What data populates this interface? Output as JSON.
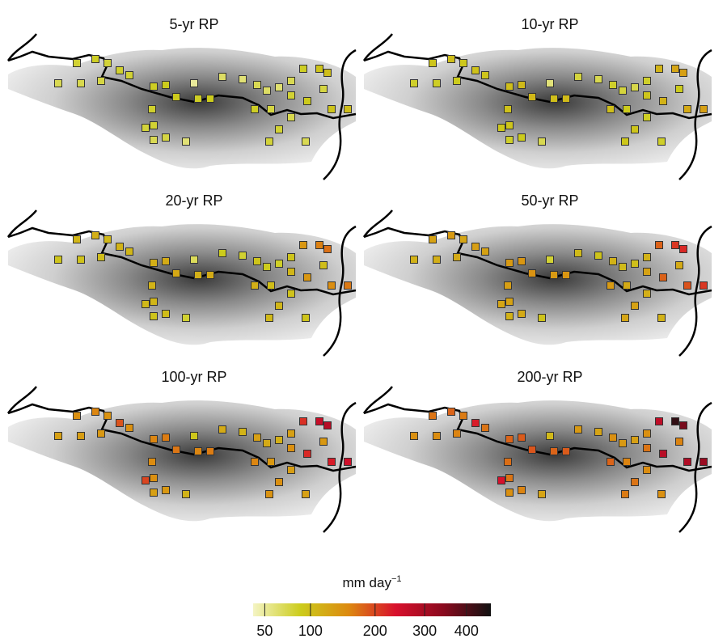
{
  "chart_data": {
    "type": "map",
    "panels": [
      {
        "title": "5-yr RP",
        "values": [
          70,
          72,
          80,
          85,
          78,
          75,
          82,
          80,
          85,
          88,
          90,
          85,
          88,
          82,
          80,
          78,
          75,
          70,
          60,
          65,
          60,
          70,
          65,
          62,
          70,
          85,
          95,
          100,
          75,
          90,
          80,
          75,
          72,
          80,
          70,
          78,
          95,
          100,
          50,
          85
        ]
      },
      {
        "title": "10-yr RP",
        "values": [
          83,
          85,
          94,
          100,
          92,
          89,
          97,
          94,
          100,
          104,
          106,
          100,
          104,
          97,
          94,
          92,
          89,
          83,
          71,
          77,
          71,
          83,
          77,
          73,
          83,
          110,
          125,
          130,
          89,
          112,
          94,
          89,
          85,
          94,
          83,
          92,
          120,
          130,
          59,
          100
        ]
      },
      {
        "title": "20-yr RP",
        "values": [
          95,
          97,
          108,
          115,
          105,
          101,
          111,
          108,
          115,
          119,
          122,
          115,
          119,
          111,
          108,
          105,
          101,
          95,
          81,
          88,
          81,
          95,
          88,
          84,
          95,
          140,
          160,
          170,
          101,
          140,
          108,
          101,
          97,
          108,
          95,
          105,
          150,
          165,
          68,
          115
        ]
      },
      {
        "title": "50-yr RP",
        "values": [
          112,
          115,
          128,
          136,
          125,
          120,
          131,
          128,
          136,
          141,
          144,
          136,
          141,
          131,
          128,
          125,
          120,
          112,
          96,
          104,
          96,
          112,
          104,
          99,
          112,
          180,
          210,
          220,
          120,
          180,
          128,
          120,
          115,
          128,
          112,
          125,
          190,
          210,
          80,
          136
        ]
      },
      {
        "title": "100-yr RP",
        "values": [
          130,
          133,
          148,
          157,
          144,
          139,
          190,
          148,
          157,
          163,
          167,
          157,
          163,
          152,
          148,
          200,
          139,
          130,
          111,
          120,
          111,
          130,
          120,
          115,
          130,
          215,
          260,
          280,
          139,
          220,
          148,
          139,
          133,
          148,
          130,
          144,
          230,
          250,
          93,
          157
        ]
      },
      {
        "title": "200-yr RP",
        "values": [
          147,
          151,
          168,
          179,
          164,
          158,
          230,
          168,
          179,
          185,
          189,
          179,
          185,
          172,
          168,
          240,
          158,
          147,
          126,
          137,
          126,
          147,
          137,
          130,
          147,
          270,
          430,
          360,
          158,
          280,
          168,
          158,
          151,
          168,
          147,
          164,
          290,
          320,
          105,
          179
        ]
      }
    ],
    "colorbar": {
      "label": "mm day",
      "label_sup": "−1",
      "clim": [
        40,
        465
      ],
      "scale": "sqrt",
      "ticks": [
        50,
        100,
        200,
        300,
        400
      ],
      "colors": [
        "#f4f4c4",
        "#cccc1c",
        "#dc8a10",
        "#d8102c",
        "#8a0a1e",
        "#111111"
      ]
    }
  }
}
